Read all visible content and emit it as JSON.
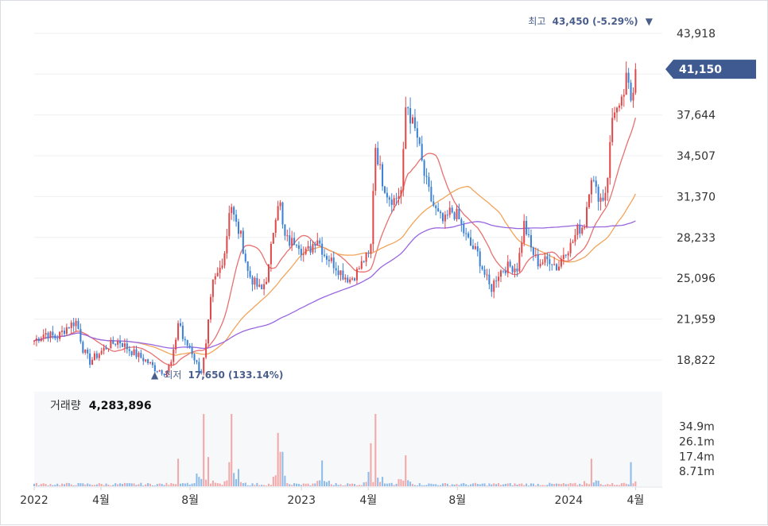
{
  "chart_data": {
    "type": "candlestick",
    "price_axis": {
      "ticks": [
        43918,
        40781,
        37644,
        34507,
        31370,
        28233,
        25096,
        21959,
        18822
      ],
      "tick_labels": [
        "43,918",
        "37,644",
        "34,507",
        "31,370",
        "28,233",
        "25,096",
        "21,959",
        "18,822"
      ],
      "range": [
        16500,
        45800
      ]
    },
    "current_price": {
      "value": 41150,
      "label": "41,150"
    },
    "high_marker": {
      "prefix": "최고",
      "value": 43450,
      "text": "43,450 (-5.29%)",
      "arrow": "▼"
    },
    "low_marker": {
      "prefix": "최저",
      "value": 17650,
      "text": "17,650 (133.14%)",
      "arrow": "▲"
    },
    "x_axis": {
      "labels": [
        "2022",
        "4월",
        "8월",
        "2023",
        "4월",
        "8월",
        "2024",
        "4월"
      ],
      "label_months": [
        0,
        3,
        7,
        12,
        15,
        19,
        24,
        27
      ],
      "span_months": 28.2
    },
    "price_points": [
      [
        0.0,
        20300
      ],
      [
        0.5,
        20900
      ],
      [
        1.0,
        20500
      ],
      [
        1.5,
        21400
      ],
      [
        1.9,
        21800
      ],
      [
        2.2,
        19600
      ],
      [
        2.5,
        18700
      ],
      [
        2.9,
        19300
      ],
      [
        3.3,
        19900
      ],
      [
        3.8,
        20300
      ],
      [
        4.2,
        19700
      ],
      [
        4.6,
        19200
      ],
      [
        5.0,
        18800
      ],
      [
        5.4,
        18200
      ],
      [
        5.9,
        17900
      ],
      [
        6.2,
        18700
      ],
      [
        6.5,
        22100
      ],
      [
        6.7,
        20200
      ],
      [
        7.0,
        19800
      ],
      [
        7.3,
        18500
      ],
      [
        7.5,
        17900
      ],
      [
        7.7,
        19600
      ],
      [
        8.0,
        24600
      ],
      [
        8.3,
        25600
      ],
      [
        8.6,
        27500
      ],
      [
        8.8,
        31200
      ],
      [
        9.0,
        29500
      ],
      [
        9.3,
        28200
      ],
      [
        9.6,
        25500
      ],
      [
        9.9,
        24700
      ],
      [
        10.2,
        24100
      ],
      [
        10.5,
        25500
      ],
      [
        10.8,
        29700
      ],
      [
        11.0,
        31500
      ],
      [
        11.2,
        28300
      ],
      [
        11.5,
        27800
      ],
      [
        11.8,
        28100
      ],
      [
        12.1,
        26900
      ],
      [
        12.4,
        27400
      ],
      [
        12.7,
        28300
      ],
      [
        13.0,
        27000
      ],
      [
        13.3,
        26500
      ],
      [
        13.6,
        25900
      ],
      [
        13.9,
        25300
      ],
      [
        14.2,
        25000
      ],
      [
        14.5,
        25600
      ],
      [
        14.8,
        26500
      ],
      [
        15.1,
        26900
      ],
      [
        15.3,
        35500
      ],
      [
        15.6,
        32800
      ],
      [
        15.9,
        31400
      ],
      [
        16.2,
        31100
      ],
      [
        16.5,
        31900
      ],
      [
        16.7,
        38900
      ],
      [
        16.9,
        37400
      ],
      [
        17.2,
        35900
      ],
      [
        17.5,
        33100
      ],
      [
        17.8,
        31200
      ],
      [
        18.1,
        30000
      ],
      [
        18.4,
        29300
      ],
      [
        18.7,
        30300
      ],
      [
        19.0,
        29900
      ],
      [
        19.3,
        28600
      ],
      [
        19.6,
        27600
      ],
      [
        19.9,
        27000
      ],
      [
        20.2,
        25500
      ],
      [
        20.5,
        24200
      ],
      [
        20.8,
        25400
      ],
      [
        21.1,
        25900
      ],
      [
        21.4,
        26000
      ],
      [
        21.7,
        25900
      ],
      [
        22.0,
        29300
      ],
      [
        22.3,
        27400
      ],
      [
        22.6,
        26300
      ],
      [
        22.9,
        26400
      ],
      [
        23.2,
        26600
      ],
      [
        23.5,
        25800
      ],
      [
        23.8,
        27200
      ],
      [
        24.1,
        27600
      ],
      [
        24.4,
        28800
      ],
      [
        24.7,
        29200
      ],
      [
        25.0,
        33200
      ],
      [
        25.2,
        31800
      ],
      [
        25.5,
        31100
      ],
      [
        25.7,
        32100
      ],
      [
        26.0,
        38300
      ],
      [
        26.3,
        37800
      ],
      [
        26.6,
        40400
      ],
      [
        26.8,
        38800
      ],
      [
        27.0,
        41150
      ]
    ],
    "moving_averages": [
      {
        "color": "#e8706f",
        "window": 5
      },
      {
        "color": "#f2a45a",
        "window": 14
      },
      {
        "color": "#9966e0",
        "window": 30
      }
    ],
    "volume_axis": {
      "tick_labels": [
        "34.9m",
        "26.1m",
        "17.4m",
        "8.71m"
      ],
      "ticks": [
        34.9,
        26.1,
        17.4,
        8.71
      ],
      "max": 42
    },
    "volume_spikes": [
      [
        6.5,
        16
      ],
      [
        7.6,
        42
      ],
      [
        7.8,
        17
      ],
      [
        8.8,
        14
      ],
      [
        8.9,
        42
      ],
      [
        9.2,
        10
      ],
      [
        11.0,
        31
      ],
      [
        11.1,
        20
      ],
      [
        12.9,
        15
      ],
      [
        15.1,
        25
      ],
      [
        15.3,
        42
      ],
      [
        16.7,
        18
      ],
      [
        25.0,
        16
      ],
      [
        26.8,
        14
      ],
      [
        27.1,
        16
      ]
    ],
    "volume_title": {
      "label": "거래량",
      "value": "4,283,896"
    },
    "colors": {
      "up": "#e0484a",
      "down": "#3b82d6",
      "volume_up": "#f2a8a8",
      "volume_down": "#8fbbe8",
      "accent": "#3e5a91"
    }
  }
}
